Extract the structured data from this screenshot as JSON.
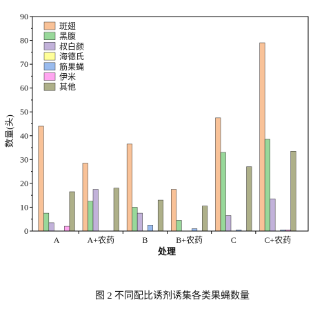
{
  "caption": "图 2 不同配比诱剂诱集各类果蝇数量",
  "chart_data": {
    "type": "bar",
    "categories": [
      "A",
      "A+农药",
      "B",
      "B+农药",
      "C",
      "C+农药"
    ],
    "series": [
      {
        "name": "斑翅",
        "color": "#F9C298",
        "values": [
          44,
          28.5,
          36.5,
          17.5,
          47.5,
          79
        ]
      },
      {
        "name": "黑腹",
        "color": "#98D89A",
        "values": [
          7.5,
          12.5,
          10,
          4.5,
          33,
          38.5
        ]
      },
      {
        "name": "叔白颜",
        "color": "#C2B2DA",
        "values": [
          3.5,
          17.5,
          7.5,
          0,
          6.5,
          13.5
        ]
      },
      {
        "name": "海德氏",
        "color": "#FFFF99",
        "values": [
          0,
          0,
          0,
          0,
          0,
          0
        ]
      },
      {
        "name": "筋果蝇",
        "color": "#99BBEE",
        "values": [
          0,
          0,
          2.5,
          1,
          0.5,
          0.5
        ]
      },
      {
        "name": "伊米",
        "color": "#FFA6F0",
        "values": [
          2,
          0,
          0,
          0,
          0,
          0.5
        ]
      },
      {
        "name": "其他",
        "color": "#AEB089",
        "values": [
          16.5,
          18,
          13,
          10.5,
          27,
          33.5
        ]
      }
    ],
    "xlabel": "处理",
    "ylabel": "数量(头)",
    "ylim": [
      0,
      90
    ],
    "yticks": [
      0,
      10,
      20,
      30,
      40,
      50,
      60,
      70,
      80,
      90
    ],
    "grid": false,
    "legend": "top-left"
  }
}
